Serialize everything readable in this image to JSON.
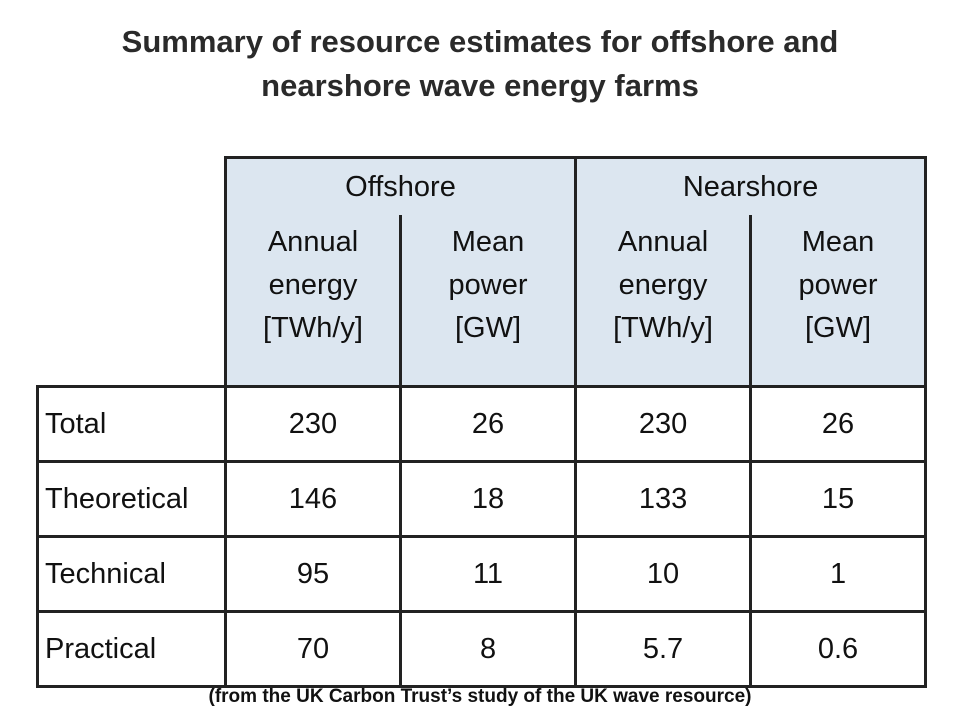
{
  "title": {
    "line1": "Summary of resource estimates for offshore and",
    "line2": "nearshore wave energy farms"
  },
  "table": {
    "groups": [
      {
        "label": "Offshore",
        "columns": [
          {
            "line1": "Annual",
            "line2": "energy",
            "line3": "[TWh/y]"
          },
          {
            "line1": "Mean",
            "line2": "power",
            "line3": "[GW]"
          }
        ]
      },
      {
        "label": "Nearshore",
        "columns": [
          {
            "line1": "Annual",
            "line2": "energy",
            "line3": "[TWh/y]"
          },
          {
            "line1": "Mean",
            "line2": "power",
            "line3": "[GW]"
          }
        ]
      }
    ],
    "rows": [
      {
        "label": "Total",
        "values": [
          "230",
          "26",
          "230",
          "26"
        ]
      },
      {
        "label": "Theoretical",
        "values": [
          "146",
          "18",
          "133",
          "15"
        ]
      },
      {
        "label": "Technical",
        "values": [
          "95",
          "11",
          "10",
          "1"
        ]
      },
      {
        "label": "Practical",
        "values": [
          "70",
          "8",
          "5.7",
          "0.6"
        ]
      }
    ]
  },
  "caption": "(from the UK Carbon Trust’s study of the UK wave resource)",
  "colors": {
    "header_background": "#dce6f0",
    "border": "#222222"
  }
}
